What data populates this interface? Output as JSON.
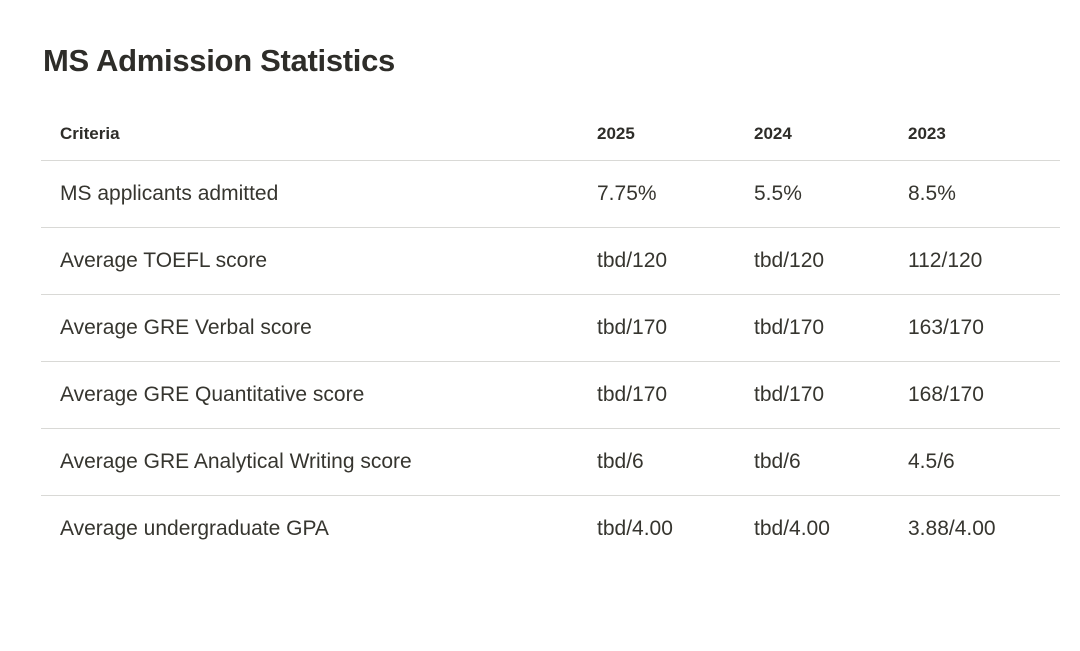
{
  "page": {
    "title": "MS Admission Statistics"
  },
  "colors": {
    "background": "#ffffff",
    "text": "#2e2d29",
    "divider": "#d9d9d6"
  },
  "table": {
    "columns": [
      "Criteria",
      "2025",
      "2024",
      "2023"
    ],
    "rows": [
      {
        "criteria": "MS applicants admitted",
        "values": [
          "7.75%",
          "5.5%",
          "8.5%"
        ]
      },
      {
        "criteria": "Average TOEFL score",
        "values": [
          "tbd/120",
          "tbd/120",
          "112/120"
        ]
      },
      {
        "criteria": "Average GRE Verbal score",
        "values": [
          "tbd/170",
          "tbd/170",
          "163/170"
        ]
      },
      {
        "criteria": "Average GRE Quantitative score",
        "values": [
          "tbd/170",
          "tbd/170",
          "168/170"
        ]
      },
      {
        "criteria": "Average GRE Analytical Writing score",
        "values": [
          "tbd/6",
          "tbd/6",
          "4.5/6"
        ]
      },
      {
        "criteria": "Average undergraduate GPA",
        "values": [
          "tbd/4.00",
          "tbd/4.00",
          "3.88/4.00"
        ]
      }
    ]
  },
  "chart_data": {
    "type": "table",
    "title": "MS Admission Statistics",
    "columns": [
      "Criteria",
      "2025",
      "2024",
      "2023"
    ],
    "rows": [
      [
        "MS applicants admitted",
        "7.75%",
        "5.5%",
        "8.5%"
      ],
      [
        "Average TOEFL score",
        "tbd/120",
        "tbd/120",
        "112/120"
      ],
      [
        "Average GRE Verbal score",
        "tbd/170",
        "tbd/170",
        "163/170"
      ],
      [
        "Average GRE Quantitative score",
        "tbd/170",
        "tbd/170",
        "168/170"
      ],
      [
        "Average GRE Analytical Writing score",
        "tbd/6",
        "tbd/6",
        "4.5/6"
      ],
      [
        "Average undergraduate GPA",
        "tbd/4.00",
        "tbd/4.00",
        "3.88/4.00"
      ]
    ]
  }
}
